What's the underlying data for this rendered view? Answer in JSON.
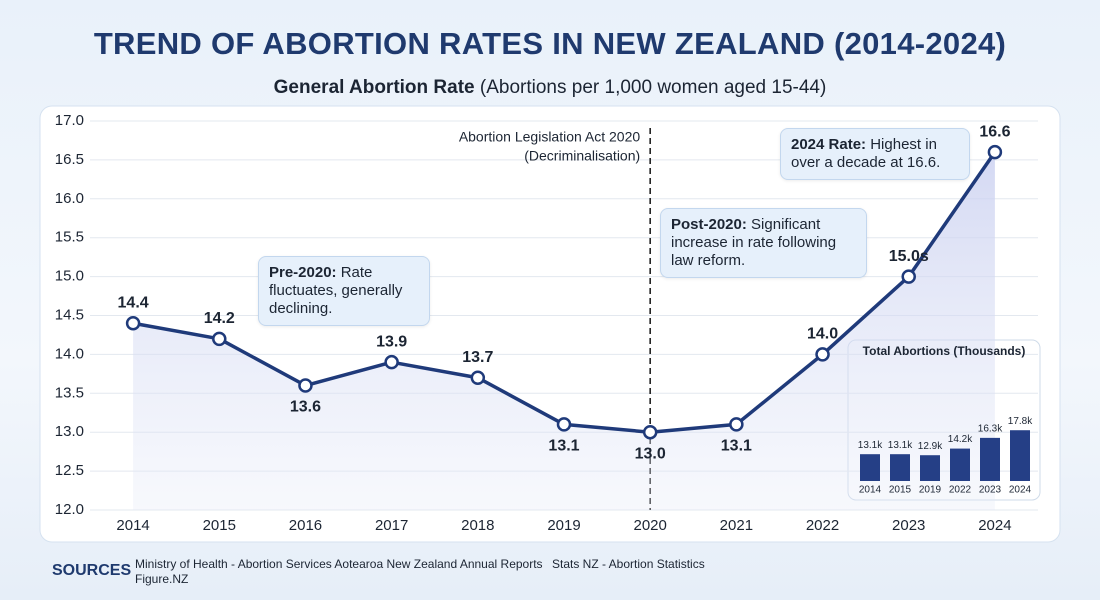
{
  "chart_data": [
    {
      "type": "line",
      "title": "TREND OF ABORTION RATES IN NEW ZEALAND (2014-2024)",
      "subtitle": [
        "General Abortion Rate",
        "(Abortions per 1,000 women aged 15-44)"
      ],
      "x": [
        2014,
        2015,
        2016,
        2017,
        2018,
        2019,
        2020,
        2021,
        2022,
        2023,
        2024
      ],
      "values": [
        14.4,
        14.2,
        13.6,
        13.9,
        13.7,
        13.1,
        13.0,
        13.1,
        14.0,
        15.0,
        16.6
      ],
      "value_labels": [
        "14.4",
        "14.2",
        "13.6",
        "13.9",
        "13.7",
        "13.1",
        "13.0",
        "13.1",
        "14.0",
        "15.0s",
        "16.6"
      ],
      "color": "#1f3a7a",
      "xlim": [
        2013.5,
        2024.5
      ],
      "xticks": [
        2014,
        2015,
        2016,
        2017,
        2018,
        2019,
        2020,
        2021,
        2022,
        2023,
        2024
      ],
      "ylim": [
        12.0,
        17.0
      ],
      "yticks": [
        {
          "value": 12,
          "label": "12.0"
        },
        12.5,
        {
          "value": 13,
          "label": "13.0"
        },
        13.5,
        {
          "value": 14,
          "label": "14.0"
        },
        14.5,
        {
          "value": 15,
          "label": "15.0"
        },
        15.5,
        {
          "value": 16,
          "label": "16.0"
        },
        16.5,
        {
          "value": 17,
          "label": "17.0"
        }
      ],
      "grid": true,
      "vline": {
        "x": 2020,
        "label": [
          "Abortion Legislation Act 2020",
          "(Decriminalisation)"
        ]
      },
      "annotations": [
        {
          "title": "Pre-2020:",
          "text": "Rate fluctuates, generally declining."
        },
        {
          "title": "Post-2020:",
          "text": "Significant increase in rate following law reform."
        },
        {
          "title": "2024 Rate:",
          "text": "Highest in over a decade at 16.6."
        }
      ]
    },
    {
      "type": "bar",
      "title": "Total Abortions (Thousands)",
      "categories": [
        "2014",
        "2015",
        "2019",
        "2022",
        "2023",
        "2024"
      ],
      "values": [
        13.1,
        13.1,
        12.9,
        14.2,
        16.3,
        17.8
      ],
      "value_labels": [
        "13.1k",
        "13.1k",
        "12.9k",
        "14.2k",
        "16.3k",
        "17.8k"
      ],
      "color": "#253f86"
    }
  ],
  "sources": {
    "heading": "SOURCES",
    "items": [
      "Ministry of Health - Abortion Services Aotearoa New Zealand Annual Reports",
      "Stats NZ - Abortion Statistics",
      "Figure.NZ"
    ]
  }
}
